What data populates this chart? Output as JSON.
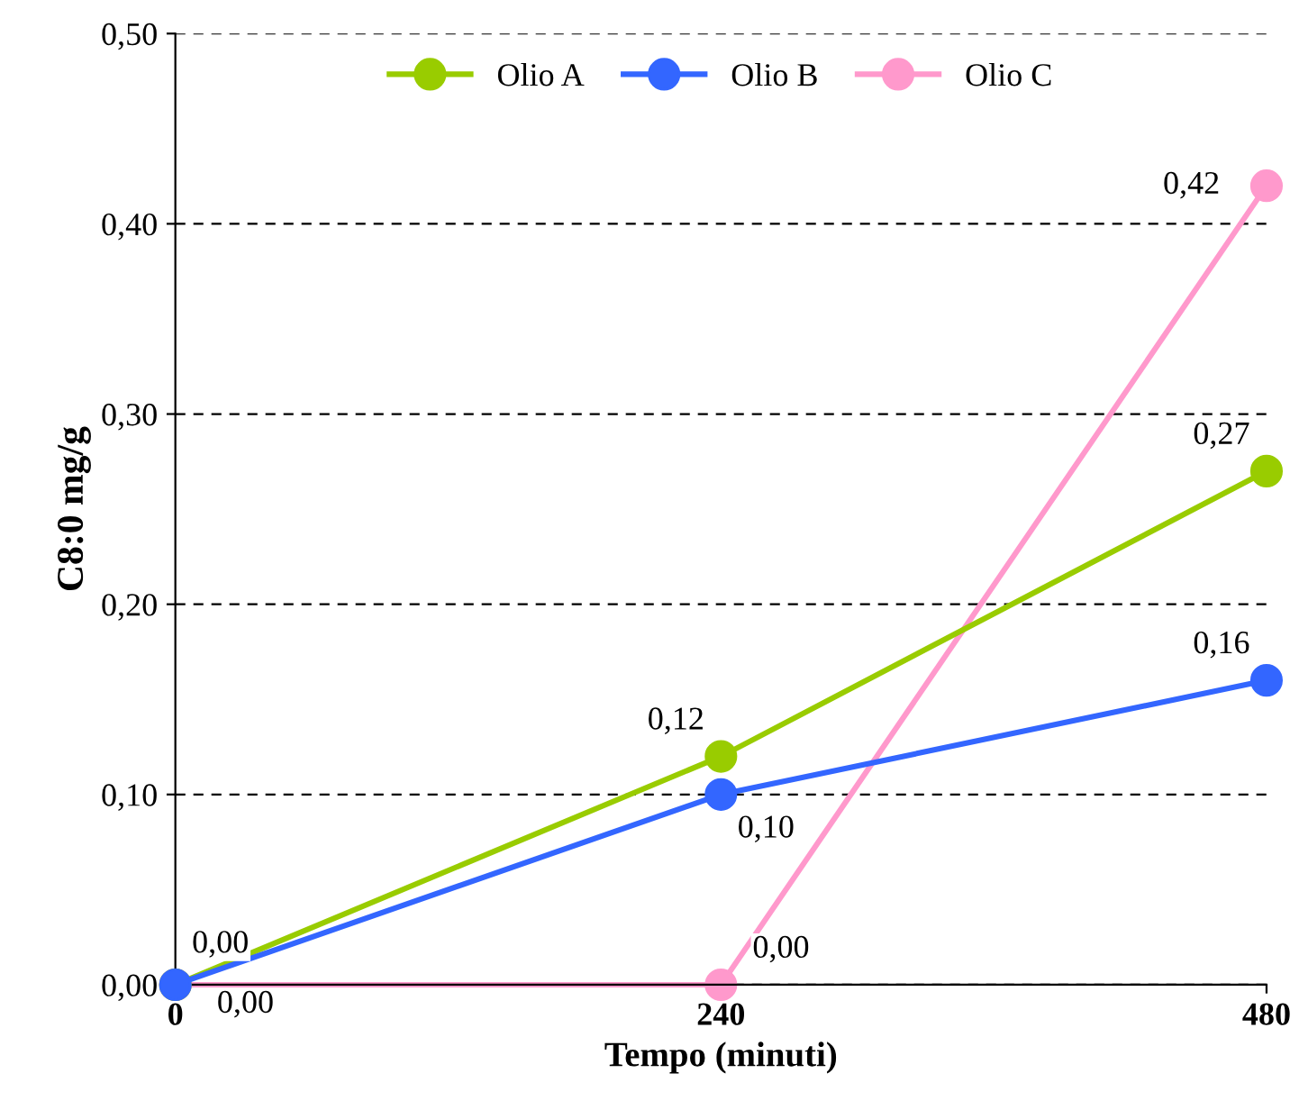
{
  "chart_data": {
    "type": "line",
    "xlabel": "Tempo (minuti)",
    "ylabel": "C8:0 mg/g",
    "x": [
      0,
      240,
      480
    ],
    "series": [
      {
        "name": "Olio A",
        "color": "#99cc00",
        "values": [
          0,
          0.12,
          0.27
        ],
        "value_labels": [
          "0,00",
          "0,12",
          "0,27"
        ]
      },
      {
        "name": "Olio B",
        "color": "#3366ff",
        "values": [
          0,
          0.1,
          0.16
        ],
        "value_labels": [
          "0,00",
          "0,10",
          "0,16"
        ]
      },
      {
        "name": "Olio C",
        "color": "#ff99cc",
        "values": [
          0,
          0,
          0.42
        ],
        "value_labels": [
          null,
          "0,00",
          "0,42"
        ]
      }
    ],
    "xlim": [
      0,
      480
    ],
    "xticks": [
      0,
      240,
      480
    ],
    "ylim": [
      0,
      0.5
    ],
    "yticks": [
      {
        "value": 0,
        "label": "0,00"
      },
      {
        "value": 0.1,
        "label": "0,10"
      },
      {
        "value": 0.2,
        "label": "0,20"
      },
      {
        "value": 0.3,
        "label": "0,30"
      },
      {
        "value": 0.4,
        "label": "0,40"
      },
      {
        "value": 0.5,
        "label": "0,50"
      }
    ],
    "grid": "y",
    "legend": "top",
    "marker": "circle",
    "line_style": "solid"
  }
}
